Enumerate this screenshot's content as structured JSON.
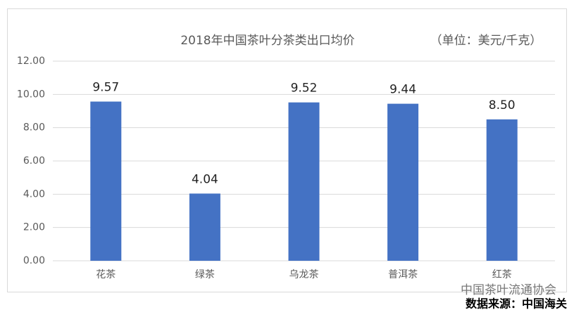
{
  "chart_data": {
    "type": "bar",
    "title": "2018年中国茶叶分茶类出口均价",
    "subtitle": "（单位：美元/千克）",
    "categories": [
      "花茶",
      "绿茶",
      "乌龙茶",
      "普洱茶",
      "红茶"
    ],
    "values": [
      9.57,
      4.04,
      9.52,
      9.44,
      8.5
    ],
    "value_labels": [
      "9.57",
      "4.04",
      "9.52",
      "9.44",
      "8.50"
    ],
    "color": "#4472c4",
    "ylim": [
      0,
      12
    ],
    "yticks": [
      {
        "value": 0,
        "label": "0.00"
      },
      {
        "value": 2,
        "label": "2.00"
      },
      {
        "value": 4,
        "label": "4.00"
      },
      {
        "value": 6,
        "label": "6.00"
      },
      {
        "value": 8,
        "label": "8.00"
      },
      {
        "value": 10,
        "label": "10.00"
      },
      {
        "value": 12,
        "label": "12.00"
      }
    ],
    "grid": true,
    "annotations": [
      "中国茶叶流通协会",
      "数据来源：中国海关"
    ]
  }
}
